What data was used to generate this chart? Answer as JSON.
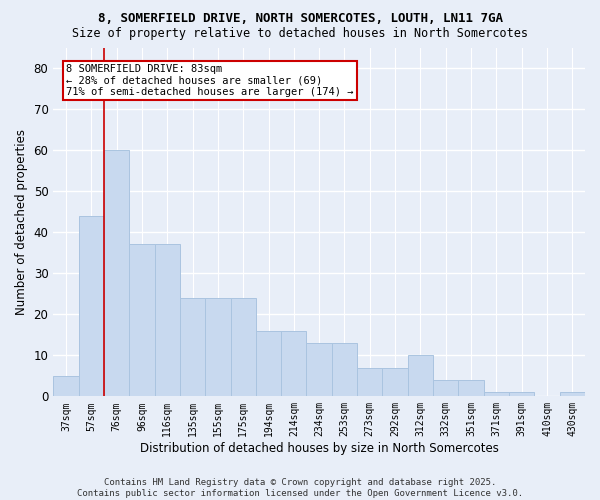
{
  "title1": "8, SOMERFIELD DRIVE, NORTH SOMERCOTES, LOUTH, LN11 7GA",
  "title2": "Size of property relative to detached houses in North Somercotes",
  "xlabel": "Distribution of detached houses by size in North Somercotes",
  "ylabel": "Number of detached properties",
  "categories": [
    "37sqm",
    "57sqm",
    "76sqm",
    "96sqm",
    "116sqm",
    "135sqm",
    "155sqm",
    "175sqm",
    "194sqm",
    "214sqm",
    "234sqm",
    "253sqm",
    "273sqm",
    "292sqm",
    "312sqm",
    "332sqm",
    "351sqm",
    "371sqm",
    "391sqm",
    "410sqm",
    "430sqm"
  ],
  "values": [
    5,
    44,
    60,
    37,
    37,
    24,
    24,
    24,
    16,
    16,
    13,
    13,
    7,
    7,
    10,
    4,
    4,
    1,
    1,
    0,
    1
  ],
  "bar_color": "#c8d9ef",
  "bar_edge_color": "#aac4e0",
  "subject_line_color": "#cc0000",
  "annotation_text": "8 SOMERFIELD DRIVE: 83sqm\n← 28% of detached houses are smaller (69)\n71% of semi-detached houses are larger (174) →",
  "annotation_box_color": "#ffffff",
  "annotation_box_edge": "#cc0000",
  "ylim": [
    0,
    85
  ],
  "yticks": [
    0,
    10,
    20,
    30,
    40,
    50,
    60,
    70,
    80
  ],
  "footer1": "Contains HM Land Registry data © Crown copyright and database right 2025.",
  "footer2": "Contains public sector information licensed under the Open Government Licence v3.0.",
  "background_color": "#e8eef8",
  "grid_color": "#ffffff"
}
